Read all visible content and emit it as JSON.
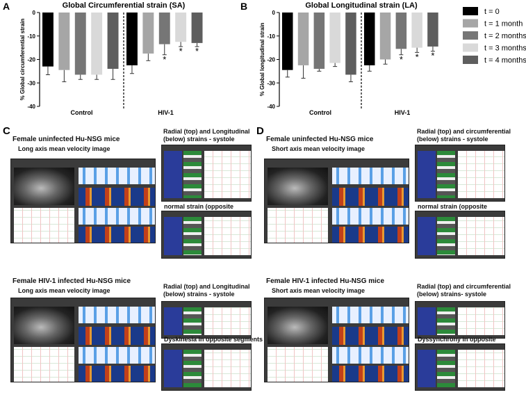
{
  "chart_data": [
    {
      "type": "bar",
      "panel": "A",
      "title": "Global Circumferential strain (SA)",
      "y_label": "% Global circumferential strain",
      "categories": [
        "Control",
        "HIV-1"
      ],
      "ylim": [
        -40,
        0
      ],
      "yticks": [
        0,
        -10,
        -20,
        -30,
        -40
      ],
      "series": [
        {
          "name": "t = 0",
          "color": "#000000",
          "values": [
            -23,
            -22.5
          ],
          "errors": [
            3.5,
            3.5
          ],
          "annotations": [
            null,
            null
          ]
        },
        {
          "name": "t = 1 month",
          "color": "#a6a6a6",
          "values": [
            -24.5,
            -17.5
          ],
          "errors": [
            5,
            3
          ],
          "annotations": [
            null,
            null
          ]
        },
        {
          "name": "t = 2 months",
          "color": "#767676",
          "values": [
            -26.5,
            -13.5
          ],
          "errors": [
            2,
            4.5
          ],
          "annotations": [
            null,
            "*"
          ]
        },
        {
          "name": "t = 3 months",
          "color": "#d9d9d9",
          "values": [
            -26.5,
            -12.5
          ],
          "errors": [
            2,
            2
          ],
          "annotations": [
            null,
            "*"
          ]
        },
        {
          "name": "t = 4 months",
          "color": "#5e5e5e",
          "values": [
            -24,
            -13
          ],
          "errors": [
            4.5,
            1.5
          ],
          "annotations": [
            null,
            "*"
          ]
        }
      ]
    },
    {
      "type": "bar",
      "panel": "B",
      "title": "Global Longitudinal strain (LA)",
      "y_label": "% Global longitudinal strain",
      "categories": [
        "Control",
        "HIV-1"
      ],
      "ylim": [
        -40,
        0
      ],
      "yticks": [
        0,
        -10,
        -20,
        -30,
        -40
      ],
      "series": [
        {
          "color": "#000000",
          "values": [
            -24.5,
            -22.5
          ],
          "errors": [
            3,
            2.5
          ],
          "annotations": [
            null,
            null
          ]
        },
        {
          "color": "#a6a6a6",
          "values": [
            -22.5,
            -20
          ],
          "errors": [
            5.5,
            2
          ],
          "annotations": [
            null,
            null
          ]
        },
        {
          "color": "#767676",
          "values": [
            -24,
            -15.5
          ],
          "errors": [
            1,
            2.5
          ],
          "annotations": [
            null,
            "*"
          ]
        },
        {
          "color": "#d9d9d9",
          "values": [
            -21.5,
            -15
          ],
          "errors": [
            1.5,
            2
          ],
          "annotations": [
            null,
            "*"
          ]
        },
        {
          "color": "#5e5e5e",
          "values": [
            -26.5,
            -14.5
          ],
          "errors": [
            3,
            2
          ],
          "annotations": [
            null,
            "*"
          ]
        }
      ]
    }
  ],
  "panels": [
    {
      "label": "C",
      "top_title": "Female uninfected Hu-NSG mice",
      "top_subtitle": "Long axis mean velocity image",
      "top_right_title": "Radial (top) and Longitudinal (below) strains - systole",
      "top_right_subtitle": "normal strain (opposite segments)",
      "bottom_title": "Female HIV-1 infected Hu-NSG mice",
      "bottom_subtitle": "Long axis mean velocity image",
      "bottom_right_title": "Radial (top) and Longitudinal (below) strains - systole",
      "bottom_right_subtitle": "Dyskinesia in opposite segments"
    },
    {
      "label": "D",
      "top_title": "Female uninfected Hu-NSG mice",
      "top_subtitle": "Short axis mean velocity image",
      "top_right_title": "Radial (top) and circumferential (below) strains - systole",
      "top_right_subtitle": "normal strain (opposite segments)",
      "bottom_title": "Female HIV-1 infected Hu-NSG mice",
      "bottom_subtitle": "Short axis mean velocity image",
      "bottom_right_title": "Radial (top) and circumferential (below) strains- systole",
      "bottom_right_subtitle": "Dyssynchrony in opposite segments"
    }
  ]
}
